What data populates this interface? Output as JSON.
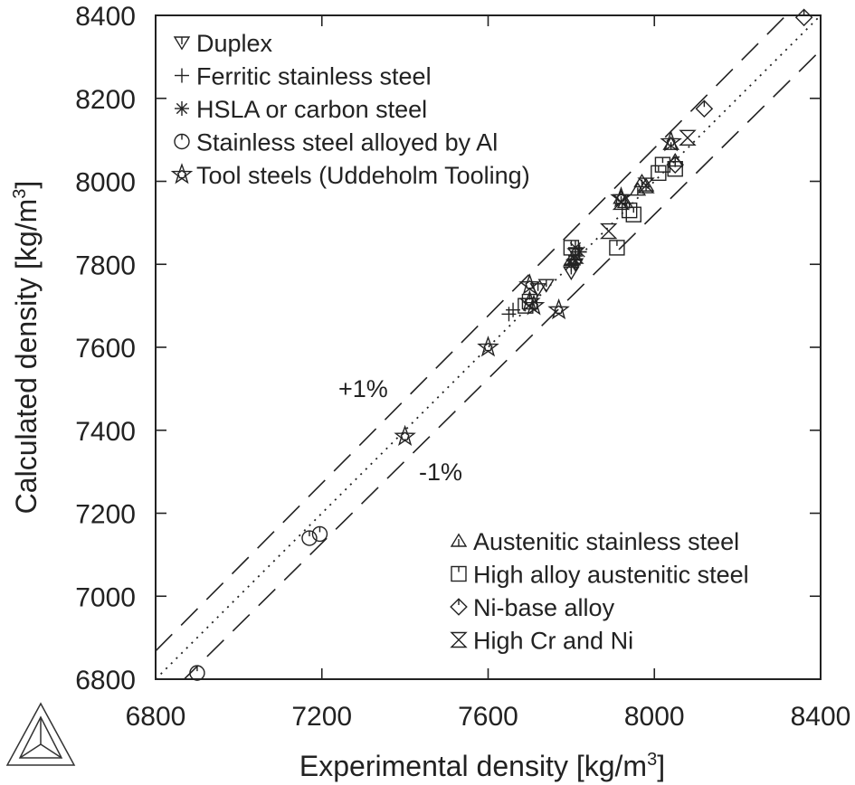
{
  "chart_data": {
    "type": "scatter",
    "title": "",
    "xlabel": "Experimental density [kg/m",
    "xlabel_sup": "3",
    "xlabel_tail": "]",
    "ylabel": "Calculated density [kg/m",
    "ylabel_sup": "3",
    "ylabel_tail": "]",
    "xlim": [
      6800,
      8400
    ],
    "ylim": [
      6800,
      8400
    ],
    "xticks": [
      6800,
      7200,
      7600,
      8000,
      8400
    ],
    "yticks": [
      6800,
      7000,
      7200,
      7400,
      7600,
      7800,
      8000,
      8200,
      8400
    ],
    "x_tick_labels": [
      "6800",
      "7200",
      "7600",
      "8000",
      "8400"
    ],
    "y_tick_labels": [
      "6800",
      "7000",
      "7200",
      "7400",
      "7600",
      "7800",
      "8000",
      "8200",
      "8400"
    ],
    "grid": false,
    "reference_lines": [
      {
        "kind": "identity",
        "style": "dotted",
        "offset_pct": 0
      },
      {
        "kind": "upper",
        "style": "dashed",
        "offset_pct": 1,
        "label": "+1%"
      },
      {
        "kind": "lower",
        "style": "dashed",
        "offset_pct": -1,
        "label": "-1%"
      }
    ],
    "legend_top_left": [
      {
        "key": "duplex",
        "label": "Duplex",
        "marker": "triangle-down"
      },
      {
        "key": "ferritic",
        "label": "Ferritic stainless steel",
        "marker": "plus"
      },
      {
        "key": "hsla",
        "label": "HSLA or carbon steel",
        "marker": "asterisk"
      },
      {
        "key": "ss_al",
        "label": "Stainless steel alloyed by Al",
        "marker": "circle-tick"
      },
      {
        "key": "tool",
        "label": "Tool steels (Uddeholm Tooling)",
        "marker": "star"
      }
    ],
    "legend_bottom_right": [
      {
        "key": "austenitic",
        "label": "Austenitic stainless steel",
        "marker": "triangle-up"
      },
      {
        "key": "high_alloy",
        "label": "High alloy austenitic steel",
        "marker": "square-tick"
      },
      {
        "key": "ni_base",
        "label": "Ni-base alloy",
        "marker": "diamond-tick"
      },
      {
        "key": "high_cr_ni",
        "label": "High Cr and Ni",
        "marker": "hourglass"
      }
    ],
    "series": [
      {
        "key": "duplex",
        "name": "Duplex",
        "points": [
          [
            7740,
            7750
          ],
          [
            7720,
            7740
          ],
          [
            7800,
            7780
          ],
          [
            7810,
            7800
          ]
        ]
      },
      {
        "key": "ferritic",
        "name": "Ferritic stainless steel",
        "points": [
          [
            7650,
            7680
          ],
          [
            7660,
            7690
          ],
          [
            7810,
            7820
          ],
          [
            7820,
            7830
          ]
        ]
      },
      {
        "key": "hsla",
        "name": "HSLA or carbon steel",
        "points": [
          [
            7810,
            7840
          ],
          [
            7820,
            7830
          ],
          [
            7810,
            7810
          ],
          [
            7800,
            7800
          ]
        ]
      },
      {
        "key": "ss_al",
        "name": "Stainless steel alloyed by Al",
        "points": [
          [
            6900,
            6815
          ],
          [
            7170,
            7140
          ],
          [
            7195,
            7150
          ]
        ]
      },
      {
        "key": "tool",
        "name": "Tool steels (Uddeholm Tooling)",
        "points": [
          [
            7400,
            7385
          ],
          [
            7600,
            7600
          ],
          [
            7700,
            7750
          ],
          [
            7700,
            7710
          ],
          [
            7710,
            7700
          ],
          [
            7770,
            7690
          ],
          [
            8040,
            8095
          ],
          [
            7920,
            7960
          ]
        ]
      },
      {
        "key": "austenitic",
        "name": "Austenitic stainless steel",
        "points": [
          [
            7920,
            7960
          ],
          [
            7930,
            7950
          ],
          [
            7960,
            7980
          ],
          [
            7970,
            8000
          ],
          [
            7980,
            7990
          ],
          [
            8050,
            8050
          ],
          [
            8040,
            8090
          ],
          [
            7800,
            7810
          ]
        ]
      },
      {
        "key": "high_alloy",
        "name": "High alloy austenitic steel",
        "points": [
          [
            7700,
            7710
          ],
          [
            7690,
            7700
          ],
          [
            7800,
            7840
          ],
          [
            7910,
            7840
          ],
          [
            7940,
            7930
          ],
          [
            7950,
            7920
          ],
          [
            8010,
            8020
          ],
          [
            8020,
            8040
          ],
          [
            8050,
            8030
          ]
        ]
      },
      {
        "key": "ni_base",
        "name": "Ni-base alloy",
        "points": [
          [
            8360,
            8395
          ],
          [
            8120,
            8175
          ],
          [
            8050,
            8040
          ]
        ]
      },
      {
        "key": "high_cr_ni",
        "name": "High Cr and Ni",
        "points": [
          [
            7890,
            7880
          ],
          [
            7980,
            7990
          ],
          [
            8080,
            8105
          ],
          [
            7810,
            7820
          ],
          [
            7920,
            7950
          ]
        ]
      }
    ]
  }
}
